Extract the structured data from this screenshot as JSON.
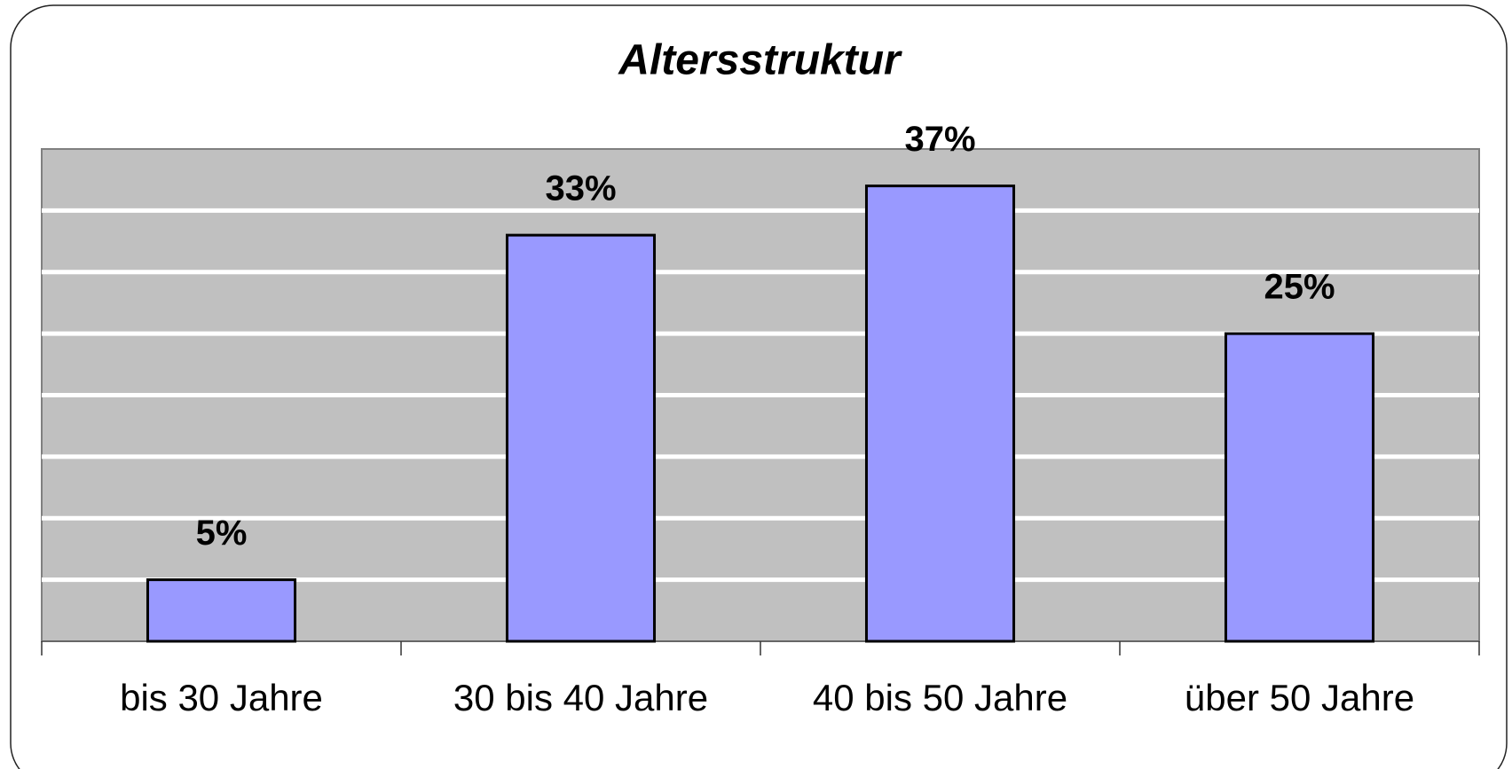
{
  "chart_data": {
    "type": "bar",
    "title": "Altersstruktur",
    "categories": [
      "bis 30 Jahre",
      "30 bis 40 Jahre",
      "40 bis 50 Jahre",
      "über 50 Jahre"
    ],
    "values": [
      5,
      33,
      37,
      25
    ],
    "value_labels": [
      "5%",
      "33%",
      "37%",
      "25%"
    ],
    "color": "#9999ff",
    "ylim": [
      0,
      40
    ],
    "yticks": [
      0,
      5,
      10,
      15,
      20,
      25,
      30,
      35,
      40
    ],
    "grid": true
  }
}
